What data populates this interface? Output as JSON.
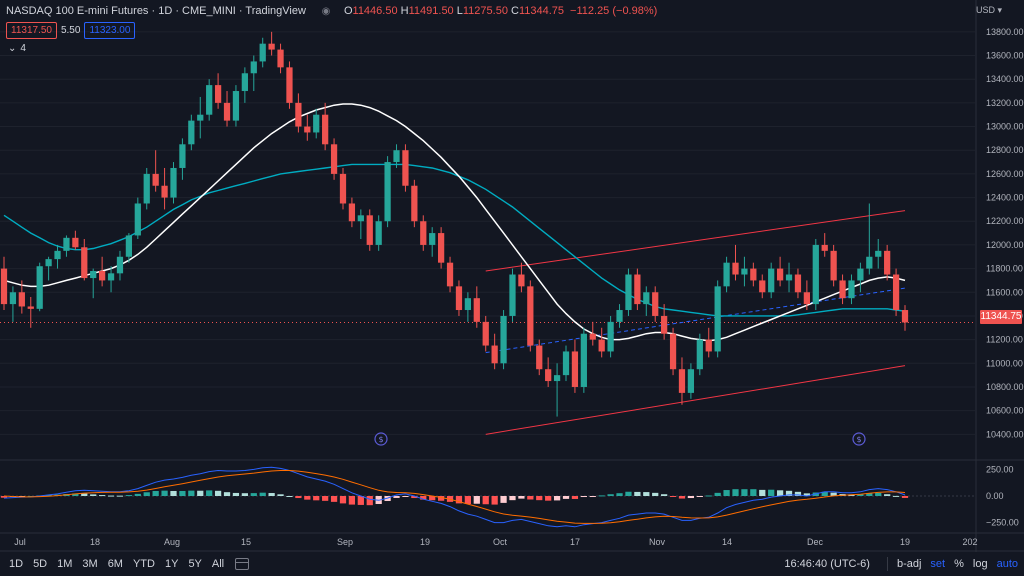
{
  "header": {
    "title": "NASDAQ 100 E-mini Futures · 1D · CME_MINI · TradingView",
    "ohlc": [
      {
        "k": "O",
        "v": "11446.50"
      },
      {
        "k": "H",
        "v": "11491.50"
      },
      {
        "k": "L",
        "v": "11275.50"
      },
      {
        "k": "C",
        "v": "11344.75"
      }
    ],
    "change": "−112.25 (−0.98%)",
    "sell_price": "11317.50",
    "spread": "5.50",
    "buy_price": "11323.00",
    "indicators_collapsed": "4"
  },
  "axis": {
    "currency": "USD",
    "last_price": "11344.75",
    "price_ticks": [
      "13800.00",
      "13600.00",
      "13400.00",
      "13200.00",
      "13000.00",
      "12800.00",
      "12600.00",
      "12400.00",
      "12200.00",
      "12000.00",
      "11800.00",
      "11600.00",
      "11400.00",
      "11200.00",
      "11000.00",
      "10800.00",
      "10600.00",
      "10400.00"
    ],
    "macd_ticks": [
      "250.00",
      "0.00",
      "−250.00"
    ],
    "time_labels": [
      "Jul",
      "18",
      "Aug",
      "15",
      "Sep",
      "19",
      "Oct",
      "17",
      "Nov",
      "14",
      "Dec",
      "19",
      "202"
    ]
  },
  "footer": {
    "timeframes": [
      "1D",
      "5D",
      "1M",
      "3M",
      "6M",
      "YTD",
      "1Y",
      "5Y",
      "All"
    ],
    "clock": "16:46:40 (UTC-6)",
    "controls": [
      "b-adj",
      "set",
      "%",
      "log",
      "auto"
    ]
  },
  "colors": {
    "bg": "#131722",
    "up": "#26a69a",
    "down": "#ef5350",
    "sma_fast": "#ffffff",
    "sma_slow": "#00acc1",
    "channel": "#f23645",
    "mid": "#2962ff",
    "macd": "#2962ff",
    "signal": "#ff6d00"
  },
  "chart_data": {
    "type": "candlestick",
    "title": "NASDAQ 100 E-mini Futures · 1D · CME_MINI",
    "last_close": 11344.75,
    "ylim": [
      10200,
      13900
    ],
    "macd_ylim": [
      -320,
      320
    ],
    "series": [
      {
        "name": "price",
        "ohlc": [
          [
            11800,
            11900,
            11450,
            11500
          ],
          [
            11500,
            11650,
            11350,
            11600
          ],
          [
            11600,
            11700,
            11420,
            11480
          ],
          [
            11480,
            11560,
            11300,
            11460
          ],
          [
            11460,
            11850,
            11440,
            11820
          ],
          [
            11820,
            11900,
            11700,
            11880
          ],
          [
            11880,
            12000,
            11800,
            11950
          ],
          [
            11950,
            12080,
            11900,
            12060
          ],
          [
            12060,
            12120,
            11960,
            11980
          ],
          [
            11980,
            12050,
            11700,
            11720
          ],
          [
            11720,
            11800,
            11550,
            11780
          ],
          [
            11780,
            11900,
            11650,
            11700
          ],
          [
            11700,
            11820,
            11600,
            11760
          ],
          [
            11760,
            11950,
            11700,
            11900
          ],
          [
            11900,
            12100,
            11850,
            12080
          ],
          [
            12080,
            12400,
            12050,
            12350
          ],
          [
            12350,
            12650,
            12300,
            12600
          ],
          [
            12600,
            12800,
            12450,
            12500
          ],
          [
            12500,
            12650,
            12300,
            12400
          ],
          [
            12400,
            12700,
            12350,
            12650
          ],
          [
            12650,
            12900,
            12550,
            12850
          ],
          [
            12850,
            13100,
            12800,
            13050
          ],
          [
            13050,
            13250,
            12900,
            13100
          ],
          [
            13100,
            13400,
            13050,
            13350
          ],
          [
            13350,
            13450,
            13150,
            13200
          ],
          [
            13200,
            13300,
            13000,
            13050
          ],
          [
            13050,
            13350,
            13000,
            13300
          ],
          [
            13300,
            13500,
            13200,
            13450
          ],
          [
            13450,
            13600,
            13300,
            13550
          ],
          [
            13550,
            13750,
            13500,
            13700
          ],
          [
            13700,
            13800,
            13600,
            13650
          ],
          [
            13650,
            13700,
            13450,
            13500
          ],
          [
            13500,
            13550,
            13150,
            13200
          ],
          [
            13200,
            13280,
            12950,
            13000
          ],
          [
            13000,
            13100,
            12880,
            12950
          ],
          [
            12950,
            13150,
            12900,
            13100
          ],
          [
            13100,
            13200,
            12800,
            12850
          ],
          [
            12850,
            12900,
            12550,
            12600
          ],
          [
            12600,
            12650,
            12300,
            12350
          ],
          [
            12350,
            12400,
            12150,
            12200
          ],
          [
            12200,
            12300,
            12050,
            12250
          ],
          [
            12250,
            12300,
            11950,
            12000
          ],
          [
            12000,
            12250,
            11950,
            12200
          ],
          [
            12200,
            12750,
            12150,
            12700
          ],
          [
            12700,
            12850,
            12650,
            12800
          ],
          [
            12800,
            12850,
            12450,
            12500
          ],
          [
            12500,
            12550,
            12150,
            12200
          ],
          [
            12200,
            12250,
            11950,
            12000
          ],
          [
            12000,
            12150,
            11900,
            12100
          ],
          [
            12100,
            12150,
            11800,
            11850
          ],
          [
            11850,
            11900,
            11600,
            11650
          ],
          [
            11650,
            11700,
            11400,
            11450
          ],
          [
            11450,
            11600,
            11350,
            11550
          ],
          [
            11550,
            11650,
            11300,
            11350
          ],
          [
            11350,
            11400,
            11100,
            11150
          ],
          [
            11150,
            11250,
            10950,
            11000
          ],
          [
            11000,
            11450,
            10950,
            11400
          ],
          [
            11400,
            11800,
            11350,
            11750
          ],
          [
            11750,
            11850,
            11600,
            11650
          ],
          [
            11650,
            11700,
            11100,
            11150
          ],
          [
            11150,
            11200,
            10900,
            10950
          ],
          [
            10950,
            11050,
            10800,
            10850
          ],
          [
            10850,
            11000,
            10550,
            10900
          ],
          [
            10900,
            11150,
            10850,
            11100
          ],
          [
            11100,
            11200,
            10750,
            10800
          ],
          [
            10800,
            11300,
            10750,
            11250
          ],
          [
            11250,
            11350,
            11150,
            11200
          ],
          [
            11200,
            11300,
            11050,
            11100
          ],
          [
            11100,
            11400,
            11050,
            11350
          ],
          [
            11350,
            11500,
            11300,
            11450
          ],
          [
            11450,
            11800,
            11400,
            11750
          ],
          [
            11750,
            11800,
            11450,
            11500
          ],
          [
            11500,
            11650,
            11400,
            11600
          ],
          [
            11600,
            11650,
            11350,
            11400
          ],
          [
            11400,
            11500,
            11200,
            11250
          ],
          [
            11250,
            11300,
            10900,
            10950
          ],
          [
            10950,
            11050,
            10650,
            10750
          ],
          [
            10750,
            11000,
            10700,
            10950
          ],
          [
            10950,
            11250,
            10900,
            11200
          ],
          [
            11200,
            11300,
            11050,
            11100
          ],
          [
            11100,
            11700,
            11050,
            11650
          ],
          [
            11650,
            11900,
            11600,
            11850
          ],
          [
            11850,
            12000,
            11700,
            11750
          ],
          [
            11750,
            11900,
            11650,
            11800
          ],
          [
            11800,
            11850,
            11650,
            11700
          ],
          [
            11700,
            11750,
            11550,
            11600
          ],
          [
            11600,
            11850,
            11550,
            11800
          ],
          [
            11800,
            11900,
            11650,
            11700
          ],
          [
            11700,
            11850,
            11600,
            11750
          ],
          [
            11750,
            11800,
            11550,
            11600
          ],
          [
            11600,
            11700,
            11450,
            11500
          ],
          [
            11500,
            12050,
            11450,
            12000
          ],
          [
            12000,
            12100,
            11900,
            11950
          ],
          [
            11950,
            12000,
            11650,
            11700
          ],
          [
            11700,
            11750,
            11500,
            11550
          ],
          [
            11550,
            11750,
            11500,
            11700
          ],
          [
            11700,
            11850,
            11600,
            11800
          ],
          [
            11800,
            12350,
            11750,
            11900
          ],
          [
            11900,
            12050,
            11800,
            11950
          ],
          [
            11950,
            12000,
            11700,
            11750
          ],
          [
            11750,
            11800,
            11400,
            11450
          ],
          [
            11450,
            11491,
            11275,
            11345
          ]
        ]
      },
      {
        "name": "sma_fast",
        "values": [
          11700,
          11680,
          11660,
          11650,
          11650,
          11660,
          11680,
          11700,
          11720,
          11740,
          11760,
          11780,
          11800,
          11830,
          11870,
          11920,
          11980,
          12050,
          12120,
          12190,
          12260,
          12330,
          12400,
          12470,
          12540,
          12610,
          12680,
          12750,
          12820,
          12880,
          12940,
          12990,
          13040,
          13080,
          13110,
          13140,
          13160,
          13180,
          13190,
          13190,
          13180,
          13160,
          13130,
          13090,
          13050,
          13000,
          12940,
          12880,
          12810,
          12740,
          12660,
          12580,
          12490,
          12400,
          12300,
          12200,
          12100,
          12000,
          11900,
          11800,
          11700,
          11600,
          11500,
          11420,
          11350,
          11290,
          11250,
          11220,
          11200,
          11200,
          11210,
          11230,
          11250,
          11260,
          11260,
          11250,
          11230,
          11210,
          11200,
          11190,
          11200,
          11220,
          11250,
          11280,
          11310,
          11340,
          11370,
          11400,
          11430,
          11460,
          11490,
          11520,
          11550,
          11580,
          11610,
          11640,
          11670,
          11700,
          11720,
          11730,
          11720,
          11700
        ]
      },
      {
        "name": "sma_slow",
        "values": [
          12250,
          12200,
          12150,
          12100,
          12060,
          12020,
          11990,
          11970,
          11960,
          11960,
          11970,
          11990,
          12010,
          12040,
          12070,
          12110,
          12150,
          12200,
          12250,
          12300,
          12340,
          12380,
          12410,
          12440,
          12460,
          12480,
          12500,
          12520,
          12540,
          12560,
          12580,
          12600,
          12610,
          12620,
          12630,
          12640,
          12650,
          12660,
          12670,
          12680,
          12680,
          12680,
          12680,
          12680,
          12680,
          12680,
          12670,
          12660,
          12650,
          12630,
          12610,
          12580,
          12550,
          12510,
          12470,
          12420,
          12370,
          12320,
          12260,
          12200,
          12140,
          12080,
          12020,
          11960,
          11900,
          11840,
          11780,
          11720,
          11670,
          11620,
          11580,
          11540,
          11510,
          11480,
          11460,
          11450,
          11440,
          11430,
          11420,
          11410,
          11400,
          11400,
          11400,
          11400,
          11400,
          11400,
          11400,
          11400,
          11400,
          11410,
          11420,
          11430,
          11440,
          11450,
          11460,
          11460,
          11460,
          11460,
          11460,
          11460,
          11450,
          11440
        ]
      },
      {
        "name": "macd",
        "values": [
          -20,
          -15,
          -10,
          -8,
          0,
          10,
          20,
          35,
          50,
          55,
          50,
          45,
          40,
          40,
          50,
          70,
          100,
          130,
          150,
          160,
          175,
          195,
          210,
          230,
          240,
          235,
          235,
          240,
          250,
          265,
          270,
          260,
          240,
          210,
          180,
          160,
          140,
          110,
          70,
          30,
          0,
          -30,
          -40,
          -20,
          10,
          20,
          0,
          -30,
          -50,
          -70,
          -100,
          -140,
          -170,
          -190,
          -220,
          -250,
          -250,
          -230,
          -220,
          -240,
          -260,
          -280,
          -290,
          -280,
          -290,
          -270,
          -260,
          -250,
          -230,
          -210,
          -180,
          -170,
          -160,
          -160,
          -170,
          -200,
          -230,
          -230,
          -210,
          -200,
          -160,
          -110,
          -80,
          -60,
          -40,
          -30,
          -10,
          0,
          10,
          10,
          0,
          20,
          40,
          40,
          30,
          30,
          40,
          60,
          70,
          60,
          40,
          10
        ]
      },
      {
        "name": "signal",
        "values": [
          0,
          -5,
          -8,
          -8,
          -6,
          -2,
          4,
          12,
          20,
          27,
          31,
          34,
          35,
          36,
          39,
          45,
          56,
          71,
          87,
          101,
          116,
          132,
          148,
          164,
          179,
          190,
          199,
          207,
          216,
          226,
          235,
          240,
          240,
          234,
          223,
          211,
          197,
          179,
          157,
          131,
          105,
          78,
          54,
          39,
          33,
          30,
          24,
          13,
          0,
          -14,
          -31,
          -53,
          -76,
          -99,
          -123,
          -149,
          -169,
          -181,
          -189,
          -199,
          -211,
          -225,
          -238,
          -246,
          -255,
          -258,
          -258,
          -257,
          -251,
          -243,
          -230,
          -218,
          -206,
          -197,
          -191,
          -193,
          -200,
          -206,
          -207,
          -206,
          -197,
          -180,
          -160,
          -140,
          -120,
          -102,
          -84,
          -67,
          -51,
          -39,
          -31,
          -21,
          -9,
          1,
          7,
          11,
          17,
          25,
          34,
          39,
          39,
          33
        ]
      }
    ]
  }
}
